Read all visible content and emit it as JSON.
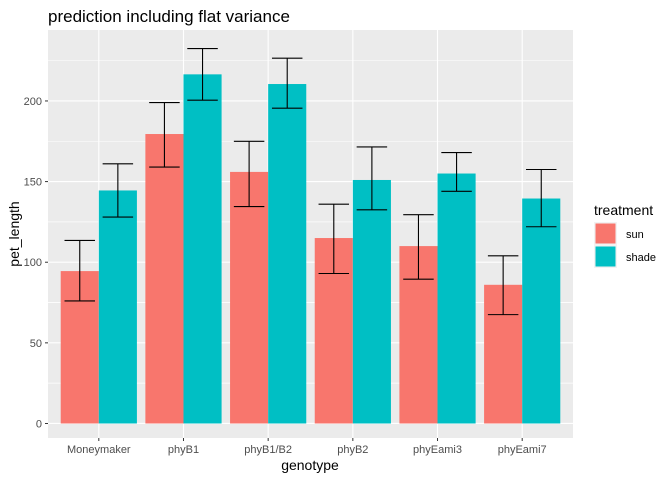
{
  "chart_data": {
    "type": "bar",
    "title": "prediction including flat variance",
    "xlabel": "genotype",
    "ylabel": "pet_length",
    "categories": [
      "Moneymaker",
      "phyB1",
      "phyB1/B2",
      "phyB2",
      "phyEami3",
      "phyEami7"
    ],
    "series": [
      {
        "name": "sun",
        "color": "#F8766D",
        "values": [
          94.5,
          179.5,
          156,
          115,
          110,
          86
        ],
        "err_low": [
          76,
          159,
          134.5,
          93,
          89.5,
          67.5
        ],
        "err_high": [
          113.5,
          199,
          175,
          136,
          129.5,
          104
        ]
      },
      {
        "name": "shade",
        "color": "#00BFC4",
        "values": [
          144.5,
          216.5,
          210.5,
          151,
          155,
          139.5
        ],
        "err_low": [
          128,
          200.5,
          195.5,
          132.5,
          144,
          122
        ],
        "err_high": [
          161,
          232.5,
          226.5,
          171.5,
          168,
          157.5
        ]
      }
    ],
    "ylim": [
      -9,
      244
    ],
    "yticks": [
      0,
      50,
      100,
      150,
      200
    ],
    "legend": {
      "title": "treatment",
      "position": "right",
      "items": [
        "sun",
        "shade"
      ]
    },
    "grid": true,
    "panel_background": "#EBEBEB",
    "error_bar_color": "#000000"
  }
}
